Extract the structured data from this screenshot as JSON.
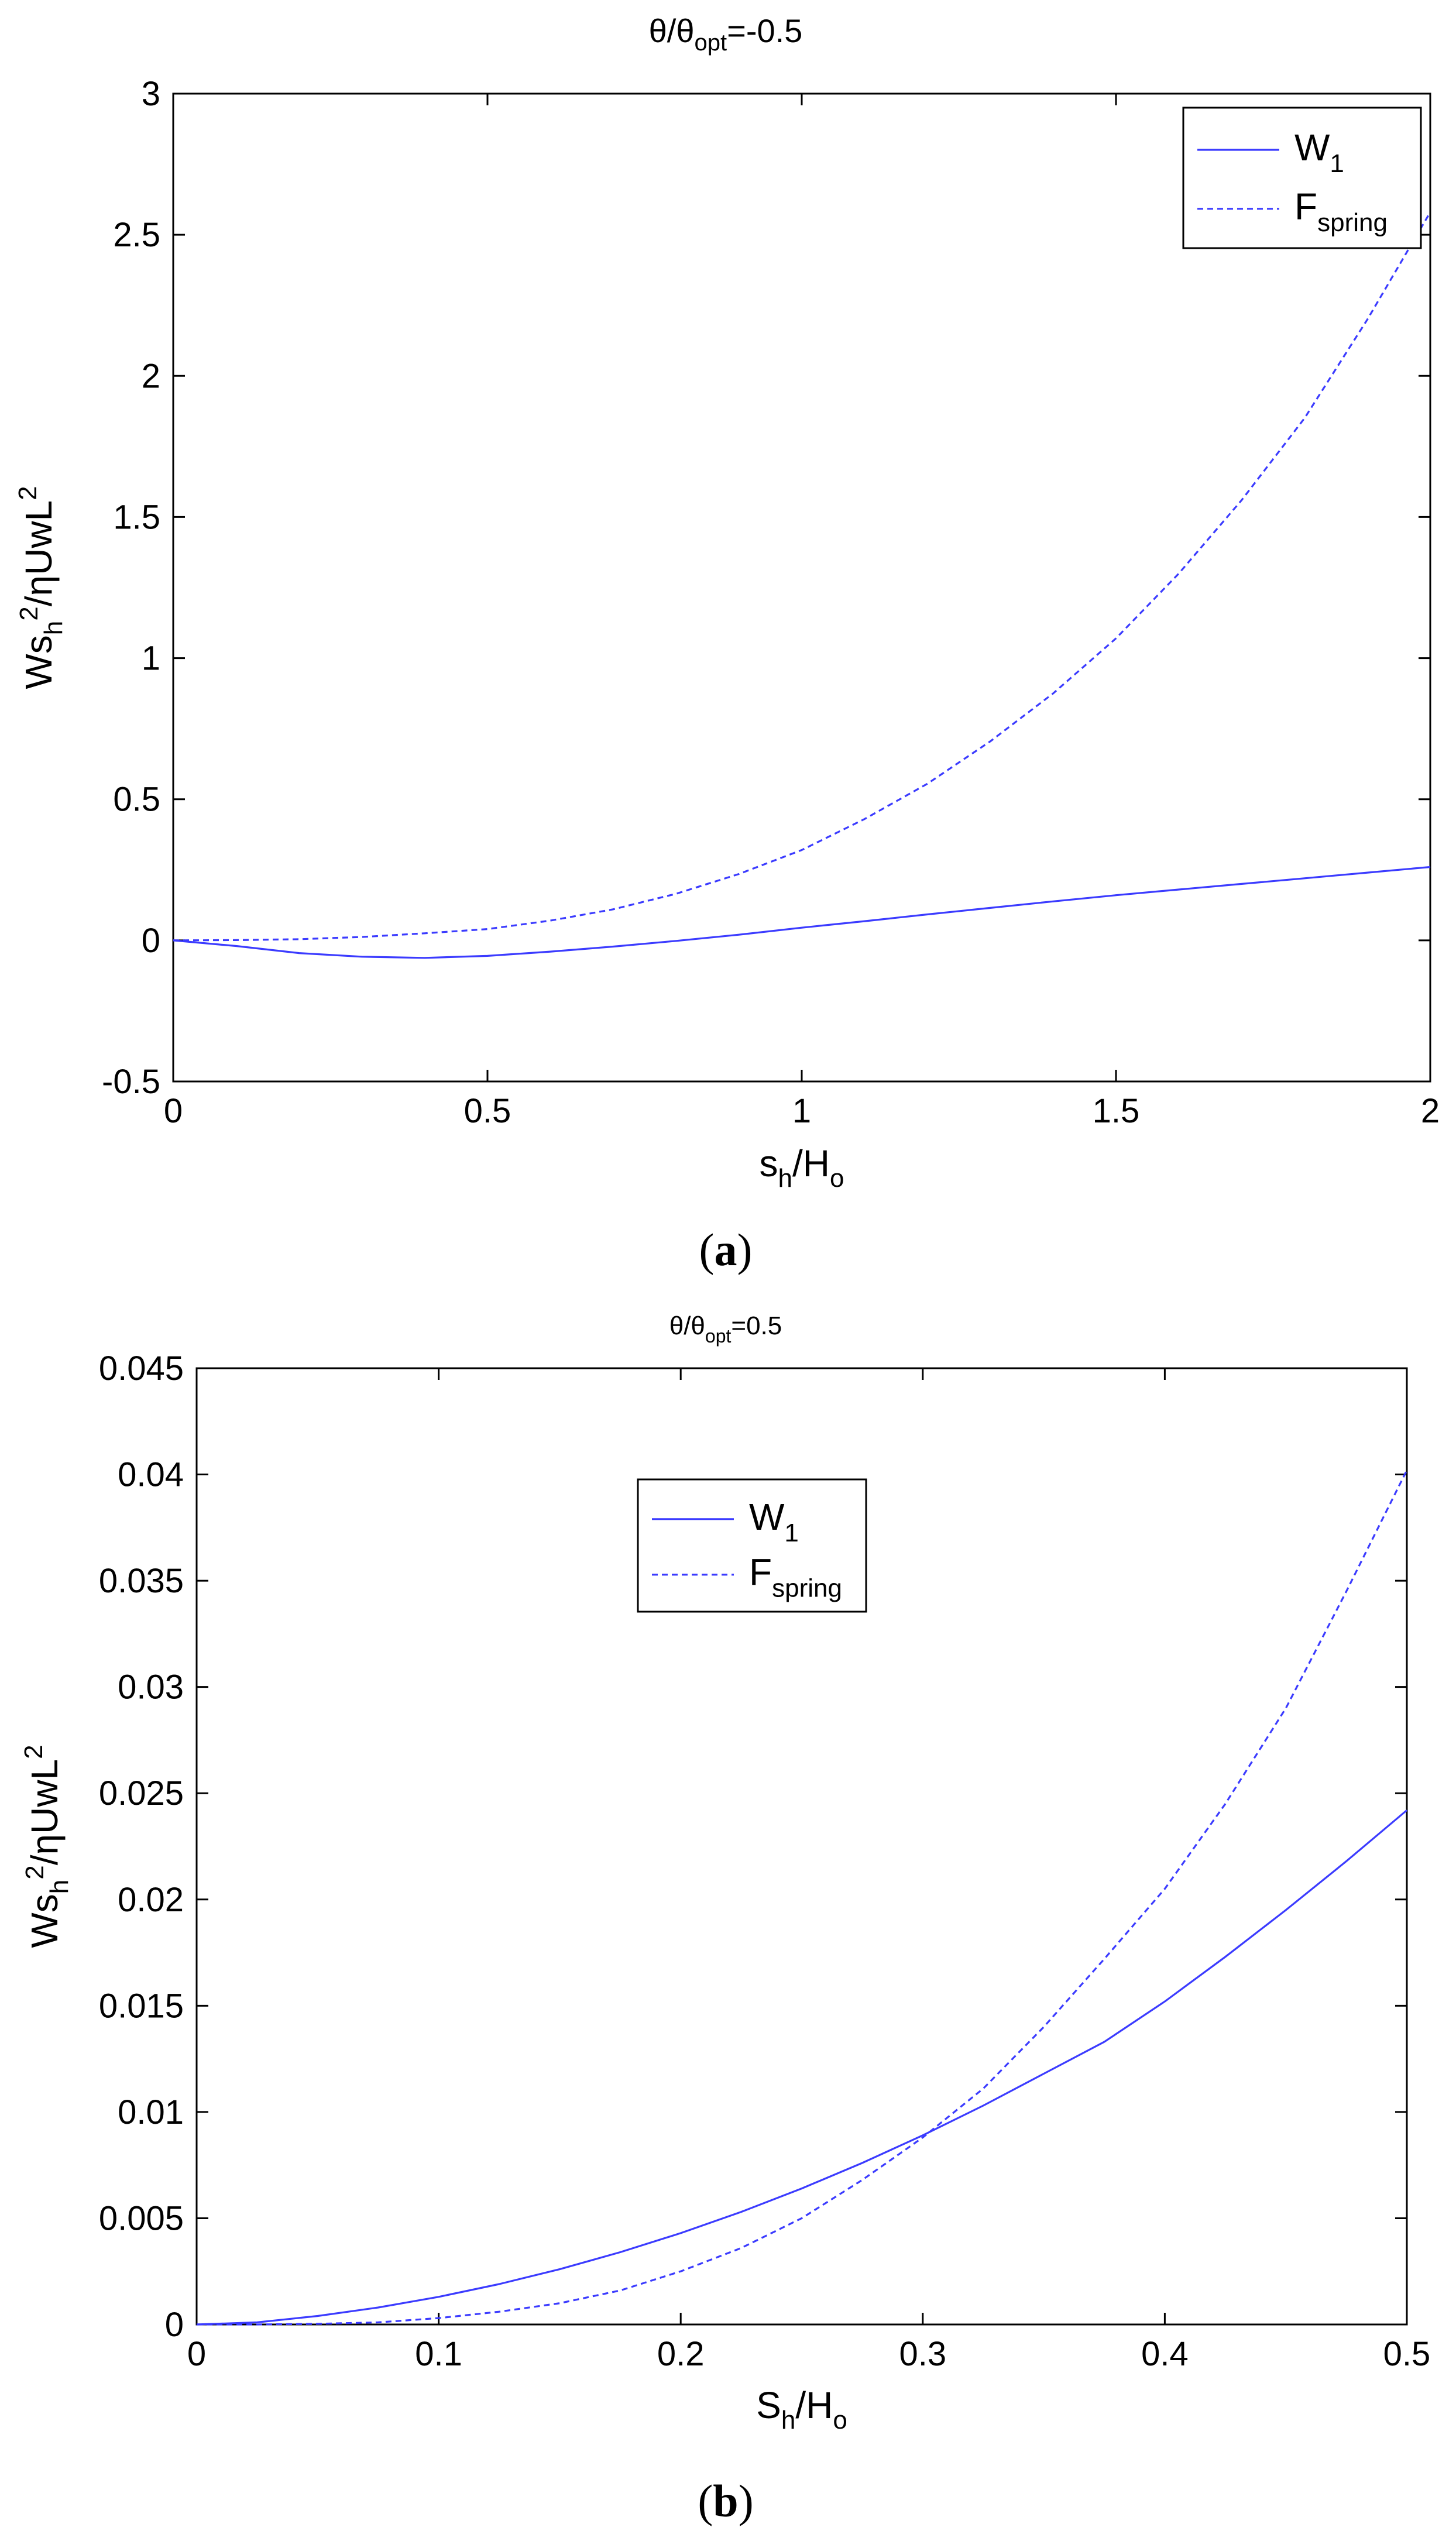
{
  "chart_data": [
    {
      "type": "line",
      "panel_label_open": "(",
      "panel_label_letter": "a",
      "panel_label_close": ")",
      "title": {
        "theta": "θ/θ",
        "sub": "opt",
        "rest": "=-0.5"
      },
      "xlabel": {
        "main": "s",
        "sub": "h",
        "rest": "/H",
        "sub2": "o"
      },
      "ylabel": {
        "main": "Ws",
        "sub": "h",
        "sup": "2",
        "rest": "/ηUwL",
        "sup2": "2"
      },
      "xlim": [
        0,
        2
      ],
      "ylim": [
        -0.5,
        3
      ],
      "xticks": [
        "0",
        "0.5",
        "1",
        "1.5",
        "2"
      ],
      "xtick_values": [
        0,
        0.5,
        1,
        1.5,
        2
      ],
      "yticks": [
        "-0.5",
        "0",
        "0.5",
        "1",
        "1.5",
        "2",
        "2.5",
        "3"
      ],
      "ytick_values": [
        -0.5,
        0,
        0.5,
        1,
        1.5,
        2,
        2.5,
        3
      ],
      "legend_position": "top-right",
      "grid": false,
      "color": "#3b3bff",
      "series": [
        {
          "name": "W",
          "name_sub": "1",
          "style": "solid",
          "x": [
            0,
            0.1,
            0.2,
            0.3,
            0.4,
            0.5,
            0.6,
            0.7,
            0.8,
            0.9,
            1.0,
            1.1,
            1.2,
            1.3,
            1.4,
            1.5,
            1.6,
            1.7,
            1.8,
            1.9,
            2.0
          ],
          "y": [
            0,
            -0.02,
            -0.045,
            -0.058,
            -0.062,
            -0.055,
            -0.04,
            -0.022,
            -0.002,
            0.02,
            0.045,
            0.068,
            0.092,
            0.115,
            0.138,
            0.16,
            0.18,
            0.2,
            0.22,
            0.24,
            0.26
          ]
        },
        {
          "name": "F",
          "name_sub": "spring",
          "style": "dashed",
          "x": [
            0,
            0.1,
            0.2,
            0.3,
            0.4,
            0.5,
            0.6,
            0.7,
            0.8,
            0.9,
            1.0,
            1.1,
            1.2,
            1.3,
            1.4,
            1.5,
            1.6,
            1.7,
            1.8,
            1.9,
            2.0
          ],
          "y": [
            0,
            0.001,
            0.004,
            0.012,
            0.025,
            0.04,
            0.07,
            0.11,
            0.165,
            0.235,
            0.32,
            0.43,
            0.555,
            0.705,
            0.875,
            1.07,
            1.3,
            1.56,
            1.85,
            2.2,
            2.58
          ]
        }
      ]
    },
    {
      "type": "line",
      "panel_label_open": "(",
      "panel_label_letter": "b",
      "panel_label_close": ")",
      "title": {
        "theta": "θ/θ",
        "sub": "opt",
        "rest": "=0.5"
      },
      "xlabel": {
        "main": "S",
        "sub": "h",
        "rest": "/H",
        "sub2": "o"
      },
      "ylabel": {
        "main": "Ws",
        "sub": "h",
        "sup": "2",
        "rest": "/ηUwL",
        "sup2": "2"
      },
      "xlim": [
        0,
        0.5
      ],
      "ylim": [
        0,
        0.045
      ],
      "xticks": [
        "0",
        "0.1",
        "0.2",
        "0.3",
        "0.4",
        "0.5"
      ],
      "xtick_values": [
        0,
        0.1,
        0.2,
        0.3,
        0.4,
        0.5
      ],
      "yticks": [
        "0",
        "0.005",
        "0.01",
        "0.015",
        "0.02",
        "0.025",
        "0.03",
        "0.035",
        "0.04",
        "0.045"
      ],
      "ytick_values": [
        0,
        0.005,
        0.01,
        0.015,
        0.02,
        0.025,
        0.03,
        0.035,
        0.04,
        0.045
      ],
      "legend_position": "upper-center",
      "grid": false,
      "color": "#3b3bff",
      "series": [
        {
          "name": "W",
          "name_sub": "1",
          "style": "solid",
          "x": [
            0,
            0.025,
            0.05,
            0.075,
            0.1,
            0.125,
            0.15,
            0.175,
            0.2,
            0.225,
            0.25,
            0.275,
            0.3,
            0.325,
            0.35,
            0.375,
            0.4,
            0.425,
            0.45,
            0.475,
            0.5
          ],
          "y": [
            0,
            0.0001,
            0.0004,
            0.0008,
            0.0013,
            0.0019,
            0.0026,
            0.0034,
            0.0043,
            0.0053,
            0.0064,
            0.0076,
            0.0089,
            0.0103,
            0.0118,
            0.0133,
            0.0152,
            0.0173,
            0.0195,
            0.0218,
            0.0242
          ]
        },
        {
          "name": "F",
          "name_sub": "spring",
          "style": "dashed",
          "x": [
            0,
            0.025,
            0.05,
            0.075,
            0.1,
            0.125,
            0.15,
            0.175,
            0.2,
            0.225,
            0.25,
            0.275,
            0.3,
            0.325,
            0.35,
            0.375,
            0.4,
            0.425,
            0.45,
            0.475,
            0.5
          ],
          "y": [
            0,
            0,
            3e-05,
            0.0001,
            0.0003,
            0.0006,
            0.001,
            0.0016,
            0.0025,
            0.0036,
            0.005,
            0.0068,
            0.0088,
            0.0111,
            0.014,
            0.0172,
            0.0205,
            0.0245,
            0.029,
            0.0345,
            0.0402
          ]
        }
      ]
    }
  ]
}
